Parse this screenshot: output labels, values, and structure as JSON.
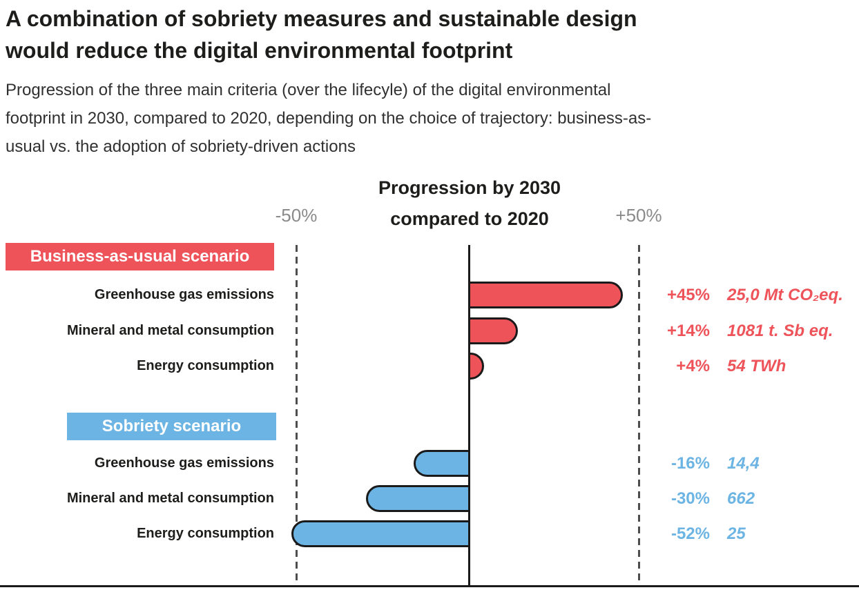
{
  "page": {
    "title_lines": [
      "A combination of sobriety measures and sustainable design",
      "would reduce the digital environmental footprint"
    ],
    "subtitle_lines": [
      "Progression of the three main criteria (over the lifecyle) of the digital environmental",
      "footprint in 2030, compared to 2020, depending on the choice of trajectory: business-as-",
      "usual vs. the adoption of sobriety-driven actions"
    ]
  },
  "chart_data": {
    "type": "bar",
    "orientation": "horizontal",
    "title": "Progression by 2030 compared to 2020",
    "title_lines": [
      "Progression by 2030",
      "compared to 2020"
    ],
    "axis": {
      "xlim": [
        -50,
        50
      ],
      "min_label": "-50%",
      "max_label": "+50%",
      "unit": "percent change vs 2020",
      "zero_line": true,
      "gridlines_at": [
        -50,
        50
      ],
      "gridline_style": "dashed"
    },
    "colors": {
      "business_as_usual": "#ee535a",
      "sobriety": "#6bb4e3",
      "bar_outline": "#1a1a1a"
    },
    "groups": [
      {
        "name": "Business-as-usual scenario",
        "color": "#ee535a",
        "rows": [
          {
            "label": "Greenhouse gas emissions",
            "value": 45,
            "pct_label": "+45%",
            "unit_label": "25,0 Mt CO₂eq."
          },
          {
            "label": "Mineral and metal consumption",
            "value": 14,
            "pct_label": "+14%",
            "unit_label": "1081 t. Sb eq."
          },
          {
            "label": "Energy consumption",
            "value": 4,
            "pct_label": "+4%",
            "unit_label": "54 TWh"
          }
        ]
      },
      {
        "name": "Sobriety scenario",
        "color": "#6bb4e3",
        "rows": [
          {
            "label": "Greenhouse gas emissions",
            "value": -16,
            "pct_label": "-16%",
            "unit_label": "14,4"
          },
          {
            "label": "Mineral and metal consumption",
            "value": -30,
            "pct_label": "-30%",
            "unit_label": "662"
          },
          {
            "label": "Energy consumption",
            "value": -52,
            "pct_label": "-52%",
            "unit_label": "25"
          }
        ]
      }
    ]
  }
}
